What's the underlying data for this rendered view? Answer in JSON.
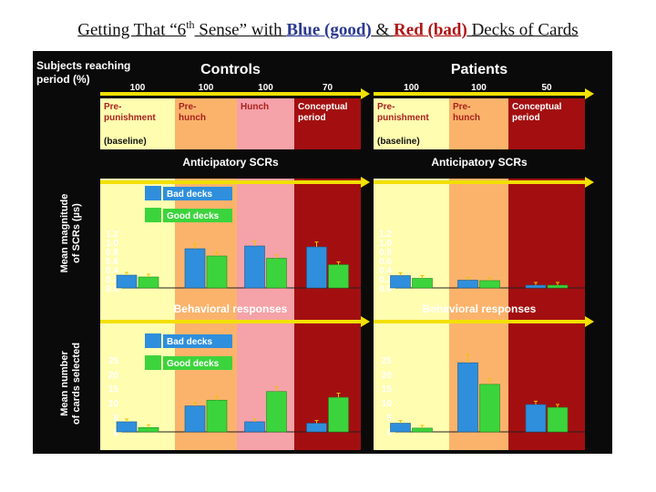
{
  "slide": {
    "title_prefix": "Getting That “6",
    "title_sup": "th",
    "title_mid": " Sense” with ",
    "title_blue": "Blue (good)",
    "title_amp": " & ",
    "title_red": "Red (bad)",
    "title_suffix": " Decks of Cards"
  },
  "colors": {
    "background": "#0a0a0a",
    "baseline": "#fffdb0",
    "prehunch": "#fbb36c",
    "hunch": "#f5a2a8",
    "conceptual": "#a30f10",
    "bad_decks": "#2f8fdc",
    "good_decks": "#3cd43c",
    "arrow": "#f2e000",
    "error_bar": "#e8c400"
  },
  "chart_data": {
    "type": "bar",
    "row_header": "Subjects reaching period (%)",
    "panels": [
      {
        "group": "Controls",
        "percent_reaching": [
          "100",
          "100",
          "100",
          "70"
        ],
        "periods": [
          {
            "label": "Pre-punishment",
            "sub": "(baseline)",
            "color_key": "baseline"
          },
          {
            "label": "Pre-hunch",
            "color_key": "prehunch"
          },
          {
            "label": "Hunch",
            "color_key": "hunch"
          },
          {
            "label": "Conceptual period",
            "color_key": "conceptual"
          }
        ]
      },
      {
        "group": "Patients",
        "percent_reaching": [
          "100",
          "100",
          "50"
        ],
        "periods": [
          {
            "label": "Pre-punishment",
            "sub": "(baseline)",
            "color_key": "baseline"
          },
          {
            "label": "Pre-hunch",
            "color_key": "prehunch"
          },
          {
            "label": "Conceptual period",
            "color_key": "conceptual"
          }
        ]
      }
    ],
    "series_names": [
      "Bad decks",
      "Good decks"
    ],
    "scr": {
      "section_title": "Anticipatory SCRs",
      "ylabel": "Mean magnitude of SCRs (µs)",
      "ylim": [
        0,
        1.2
      ],
      "yticks": [
        "0.0",
        "0.2",
        "0.4",
        "0.6",
        "0.8",
        "1.0",
        "1.2"
      ],
      "controls": {
        "bad": [
          0.28,
          0.86,
          0.92,
          0.9
        ],
        "good": [
          0.24,
          0.7,
          0.65,
          0.51
        ]
      },
      "patients": {
        "bad": [
          0.27,
          0.17,
          0.06
        ],
        "good": [
          0.21,
          0.16,
          0.06
        ]
      }
    },
    "behavior": {
      "section_title": "Behavioral responses",
      "ylabel": "Mean number of cards selected",
      "ylim": [
        0,
        25
      ],
      "yticks": [
        "0",
        "5",
        "10",
        "15",
        "20",
        "25"
      ],
      "controls": {
        "bad": [
          3.5,
          9,
          3.5,
          3
        ],
        "good": [
          1.5,
          11,
          14,
          12
        ]
      },
      "patients": {
        "bad": [
          3,
          24,
          9.5
        ],
        "good": [
          1.3,
          16.5,
          8.5
        ]
      }
    }
  }
}
